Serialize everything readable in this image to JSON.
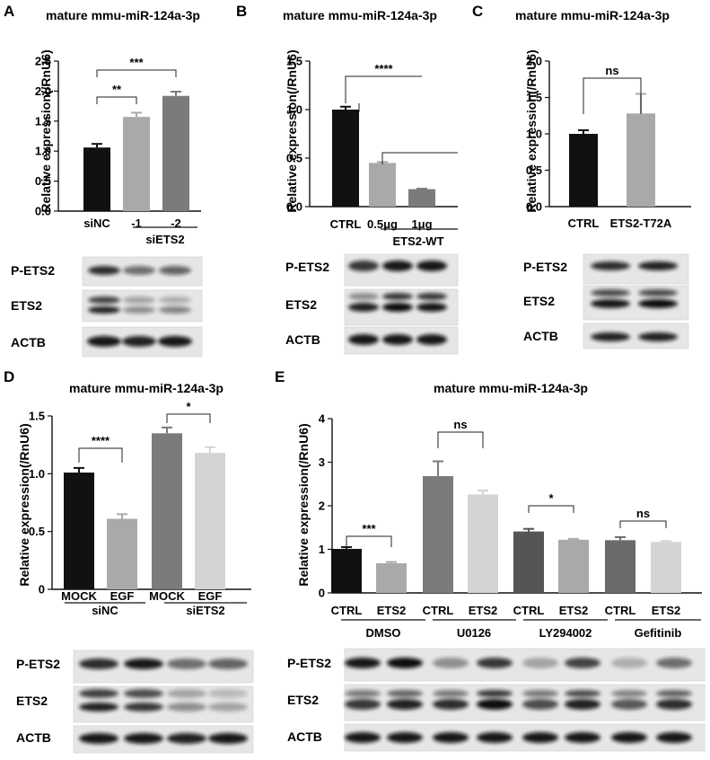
{
  "figure": {
    "title": "",
    "panels": [
      "A",
      "B",
      "C",
      "D",
      "E"
    ]
  },
  "chart_data": [
    {
      "panel": "A",
      "type": "bar",
      "title": "mature mmu-miR-124a-3p",
      "ylabel": "Relative expression(/RnU6)",
      "ylim": [
        0,
        2.5
      ],
      "yticks": [
        "0.0",
        "0.5",
        "1.0",
        "1.5",
        "2.0",
        "2.5"
      ],
      "categories": [
        "siNC",
        "-1",
        "-2"
      ],
      "group_labels": [
        "siETS2"
      ],
      "values": [
        1.06,
        1.57,
        1.92
      ],
      "errors": [
        0.06,
        0.07,
        0.07
      ],
      "colors": [
        "#111111",
        "#a9a9a9",
        "#7b7b7b"
      ],
      "significance": [
        {
          "pair": [
            0,
            1
          ],
          "label": "**"
        },
        {
          "pair": [
            0,
            2
          ],
          "label": "***"
        }
      ],
      "blots": [
        "P-ETS2",
        "ETS2",
        "ACTB"
      ]
    },
    {
      "panel": "B",
      "type": "bar",
      "title": "mature mmu-miR-124a-3p",
      "ylabel": "Relative expression(/RnU6)",
      "ylim": [
        0,
        1.5
      ],
      "yticks": [
        "0.0",
        "0.5",
        "1.0",
        "1.5"
      ],
      "categories": [
        "CTRL",
        "0.5μg",
        "1μg"
      ],
      "group_labels": [
        "ETS2-WT"
      ],
      "values": [
        1.0,
        0.45,
        0.18
      ],
      "errors": [
        0.03,
        0.01,
        0.005
      ],
      "colors": [
        "#111111",
        "#a9a9a9",
        "#7b7b7b"
      ],
      "significance": [
        {
          "pair": [
            0,
            1
          ],
          "label": "****"
        }
      ],
      "blots": [
        "P-ETS2",
        "ETS2",
        "ACTB"
      ]
    },
    {
      "panel": "C",
      "type": "bar",
      "title": "mature mmu-miR-124a-3p",
      "ylabel": "Relative expression(/RnU6)",
      "ylim": [
        0,
        2.0
      ],
      "yticks": [
        "0.0",
        "0.5",
        "1.0",
        "1.5",
        "2.0"
      ],
      "categories": [
        "CTRL",
        "ETS2-T72A"
      ],
      "group_labels": [],
      "values": [
        1.0,
        1.28
      ],
      "errors": [
        0.05,
        0.27
      ],
      "colors": [
        "#111111",
        "#a9a9a9"
      ],
      "significance": [
        {
          "pair": [
            0,
            1
          ],
          "label": "ns"
        }
      ],
      "blots": [
        "P-ETS2",
        "ETS2",
        "ACTB"
      ]
    },
    {
      "panel": "D",
      "type": "bar",
      "title": "mature mmu-miR-124a-3p",
      "ylabel": "Relative expression(/RnU6)",
      "ylim": [
        0,
        1.5
      ],
      "yticks": [
        "0",
        "0.5",
        "1.0",
        "1.5"
      ],
      "categories": [
        "MOCK",
        "EGF",
        "MOCK",
        "EGF"
      ],
      "group_labels": [
        "siNC",
        "siETS2"
      ],
      "values": [
        1.01,
        0.61,
        1.35,
        1.18
      ],
      "errors": [
        0.04,
        0.04,
        0.05,
        0.05
      ],
      "colors": [
        "#111111",
        "#a9a9a9",
        "#7b7b7b",
        "#d4d4d4"
      ],
      "significance": [
        {
          "pair": [
            0,
            1
          ],
          "label": "****"
        },
        {
          "pair": [
            2,
            3
          ],
          "label": "*"
        }
      ],
      "blots": [
        "P-ETS2",
        "ETS2",
        "ACTB"
      ]
    },
    {
      "panel": "E",
      "type": "bar",
      "title": "mature mmu-miR-124a-3p",
      "ylabel": "Relative expression(/RnU6)",
      "ylim": [
        0,
        4
      ],
      "yticks": [
        "0",
        "1",
        "2",
        "3",
        "4"
      ],
      "categories": [
        "CTRL",
        "ETS2",
        "CTRL",
        "ETS2",
        "CTRL",
        "ETS2",
        "CTRL",
        "ETS2"
      ],
      "group_labels": [
        "DMSO",
        "U0126",
        "LY294002",
        "Gefitinib"
      ],
      "values": [
        1.01,
        0.68,
        2.68,
        2.26,
        1.41,
        1.22,
        1.21,
        1.17
      ],
      "errors": [
        0.04,
        0.03,
        0.34,
        0.09,
        0.06,
        0.02,
        0.07,
        0.02
      ],
      "colors": [
        "#111111",
        "#a9a9a9",
        "#7b7b7b",
        "#d4d4d4",
        "#555555",
        "#a9a9a9",
        "#6a6a6a",
        "#d4d4d4"
      ],
      "significance": [
        {
          "pair": [
            0,
            1
          ],
          "label": "***"
        },
        {
          "pair": [
            2,
            3
          ],
          "label": "ns"
        },
        {
          "pair": [
            4,
            5
          ],
          "label": "*"
        },
        {
          "pair": [
            6,
            7
          ],
          "label": "ns"
        }
      ],
      "blots": [
        "P-ETS2",
        "ETS2",
        "ACTB"
      ]
    }
  ]
}
